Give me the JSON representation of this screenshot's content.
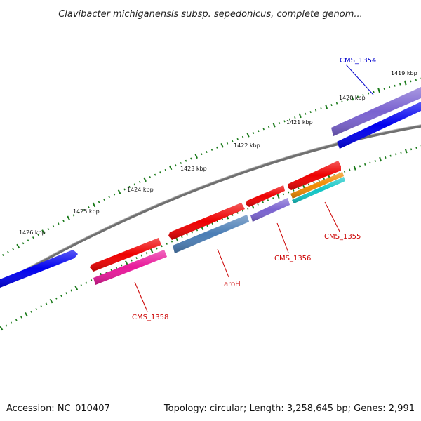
{
  "title": "Clavibacter michiganensis subsp. sepedonicus, complete genom...",
  "footer": {
    "accession": "Accession: NC_010407",
    "summary": "Topology: circular; Length: 3,258,645 bp; Genes: 2,991"
  },
  "ticks": [
    {
      "label": "1419 kbp",
      "kbp": 1419
    },
    {
      "label": "1420 kbp",
      "kbp": 1420
    },
    {
      "label": "1421 kbp",
      "kbp": 1421
    },
    {
      "label": "1422 kbp",
      "kbp": 1422
    },
    {
      "label": "1423 kbp",
      "kbp": 1423
    },
    {
      "label": "1424 kbp",
      "kbp": 1424
    },
    {
      "label": "1425 kbp",
      "kbp": 1425
    },
    {
      "label": "1426 kbp",
      "kbp": 1426
    }
  ],
  "genes": [
    {
      "name": "CMS_1354",
      "label": "CMS_1354",
      "label_color": "#0000cc",
      "color": "#7a62d0"
    },
    {
      "name": "CMS_1354-cds",
      "label": "",
      "color": "#0000ee"
    },
    {
      "name": "CMS_1355",
      "label": "CMS_1355",
      "label_color": "#cc0000",
      "color": "#ee0000"
    },
    {
      "name": "CMS_1355-orange",
      "label": "",
      "color": "#f08a00"
    },
    {
      "name": "CMS_1355-cyan",
      "label": "",
      "color": "#12c6c6"
    },
    {
      "name": "CMS_1356",
      "label": "CMS_1356",
      "label_color": "#cc0000",
      "color": "#ee0000"
    },
    {
      "name": "CMS_1356-cds",
      "label": "",
      "color": "#7a62d0"
    },
    {
      "name": "aroH",
      "label": "aroH",
      "label_color": "#cc0000",
      "color": "#ee0000"
    },
    {
      "name": "aroH-cds",
      "label": "",
      "color": "#4a7db5"
    },
    {
      "name": "CMS_1358",
      "label": "CMS_1358",
      "label_color": "#cc0000",
      "color": "#ee0000"
    },
    {
      "name": "CMS_1358-cds",
      "label": "",
      "color": "#e8189a"
    },
    {
      "name": "left-gene",
      "label": "",
      "color": "#0000ee"
    }
  ],
  "colors": {
    "backbone": "#808080",
    "tick_dots": "#1a7a1a"
  }
}
